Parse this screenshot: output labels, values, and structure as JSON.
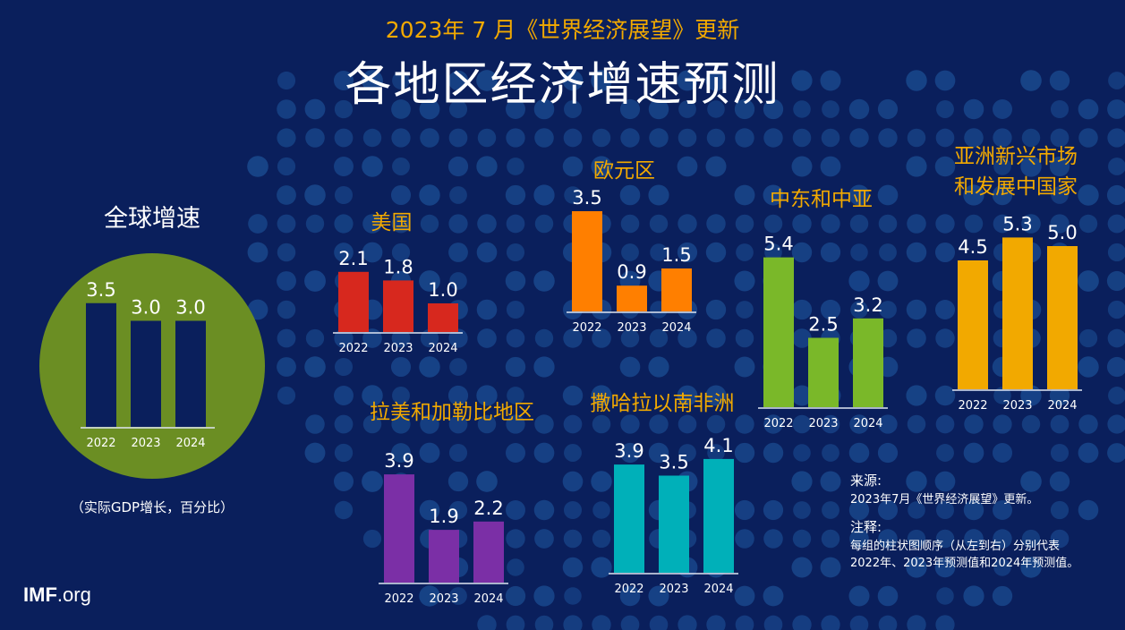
{
  "header": {
    "subtitle": "2023年 7 月《世界经济展望》更新",
    "title": "各地区经济增速预测"
  },
  "colors": {
    "background": "#0a1f5c",
    "dot": "#1a4a8f",
    "title_accent": "#f2a900",
    "global_circle": "#6b8e23",
    "global_bars": "#0a1f5c",
    "us": "#d7281e",
    "euro": "#ff7f00",
    "mecca": "#7ab829",
    "asia": "#f2a900",
    "latam": "#7b2fa6",
    "ssa": "#00b0b9"
  },
  "unit_note": "（实际GDP增长，百分比）",
  "notes": {
    "source_label": "来源:",
    "source_text": "2023年7月《世界经济展望》更新。",
    "note_label": "注释:",
    "note_line1": "每组的柱状图顺序（从左到右）分别代表",
    "note_line2": "2022年、2023年预测值和2024年预测值。"
  },
  "logo": {
    "bold": "IMF",
    "rest": ".org"
  },
  "chart_data": [
    {
      "type": "bar",
      "id": "global",
      "title": "全球增速",
      "categories": [
        "2022",
        "2023",
        "2024"
      ],
      "values": [
        3.5,
        3.0,
        3.0
      ],
      "labels": [
        "3.5",
        "3.0",
        "3.0"
      ],
      "color_key": "global_bars"
    },
    {
      "type": "bar",
      "id": "us",
      "title": "美国",
      "categories": [
        "2022",
        "2023",
        "2024"
      ],
      "values": [
        2.1,
        1.8,
        1.0
      ],
      "labels": [
        "2.1",
        "1.8",
        "1.0"
      ],
      "color_key": "us"
    },
    {
      "type": "bar",
      "id": "euro",
      "title": "欧元区",
      "categories": [
        "2022",
        "2023",
        "2024"
      ],
      "values": [
        3.5,
        0.9,
        1.5
      ],
      "labels": [
        "3.5",
        "0.9",
        "1.5"
      ],
      "color_key": "euro"
    },
    {
      "type": "bar",
      "id": "mecca",
      "title": "中东和中亚",
      "categories": [
        "2022",
        "2023",
        "2024"
      ],
      "values": [
        5.4,
        2.5,
        3.2
      ],
      "labels": [
        "5.4",
        "2.5",
        "3.2"
      ],
      "color_key": "mecca"
    },
    {
      "type": "bar",
      "id": "asia",
      "title": "亚洲新兴市场\n和发展中国家",
      "title_lines": [
        "亚洲新兴市场",
        "和发展中国家"
      ],
      "categories": [
        "2022",
        "2023",
        "2024"
      ],
      "values": [
        4.5,
        5.3,
        5.0
      ],
      "labels": [
        "4.5",
        "5.3",
        "5.0"
      ],
      "color_key": "asia"
    },
    {
      "type": "bar",
      "id": "latam",
      "title": "拉美和加勒比地区",
      "categories": [
        "2022",
        "2023",
        "2024"
      ],
      "values": [
        3.9,
        1.9,
        2.2
      ],
      "labels": [
        "3.9",
        "1.9",
        "2.2"
      ],
      "color_key": "latam"
    },
    {
      "type": "bar",
      "id": "ssa",
      "title": "撒哈拉以南非洲",
      "categories": [
        "2022",
        "2023",
        "2024"
      ],
      "values": [
        3.9,
        3.5,
        4.1
      ],
      "labels": [
        "3.9",
        "3.5",
        "4.1"
      ],
      "color_key": "ssa"
    }
  ]
}
